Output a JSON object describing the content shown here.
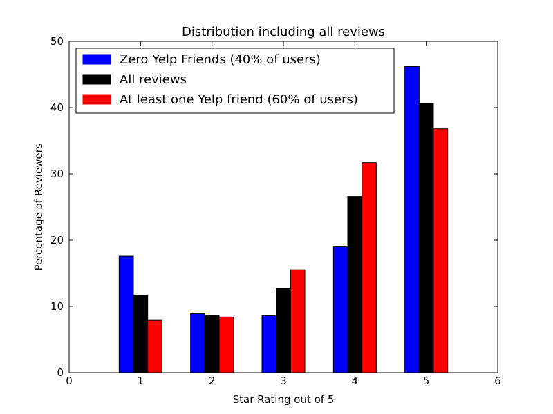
{
  "chart_data": {
    "type": "bar",
    "title": "Distribution including all reviews",
    "xlabel": "Star Rating out of 5",
    "ylabel": "Percentage of Reviewers",
    "xlim": [
      0,
      6
    ],
    "ylim": [
      0,
      50
    ],
    "xticks": [
      "0",
      "1",
      "2",
      "3",
      "4",
      "5",
      "6"
    ],
    "yticks": [
      "0",
      "10",
      "20",
      "30",
      "40",
      "50"
    ],
    "categories": [
      1,
      2,
      3,
      4,
      5
    ],
    "grid": false,
    "legend_position": "top-left",
    "series": [
      {
        "name": "Zero Yelp Friends (40% of users)",
        "color": "#0000ff",
        "values": [
          17.6,
          8.9,
          8.6,
          19.0,
          46.2
        ]
      },
      {
        "name": "All reviews",
        "color": "#000000",
        "values": [
          11.7,
          8.6,
          12.7,
          26.6,
          40.6
        ]
      },
      {
        "name": "At least one Yelp friend (60% of users)",
        "color": "#ff0000",
        "values": [
          7.9,
          8.4,
          15.5,
          31.7,
          36.8
        ]
      }
    ]
  }
}
